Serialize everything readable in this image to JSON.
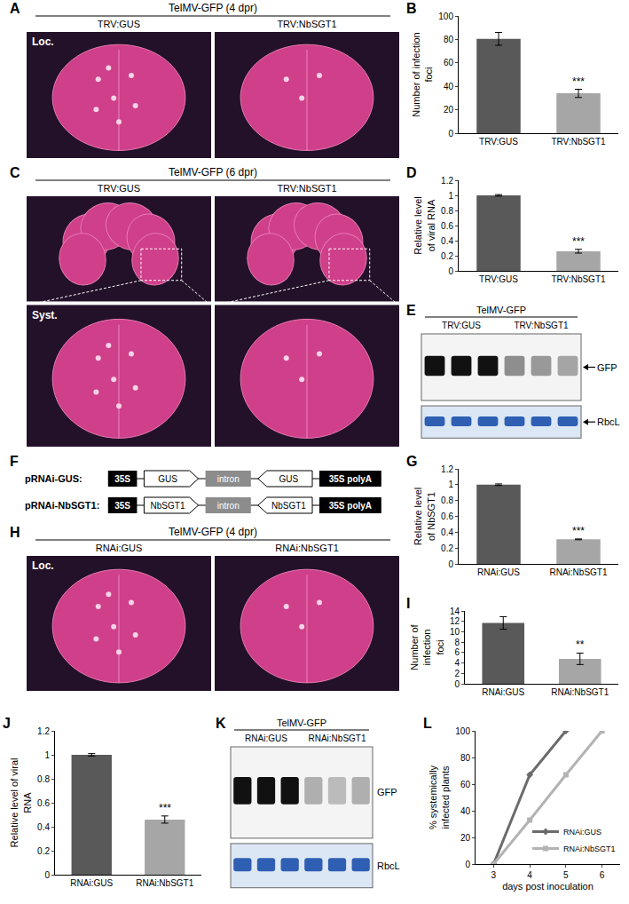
{
  "chart_data": [
    {
      "panel": "B",
      "type": "bar",
      "categories": [
        "TRV:GUS",
        "TRV:NbSGT1"
      ],
      "values": [
        80.5,
        34
      ],
      "errors": [
        5.5,
        3.5
      ],
      "colors": [
        "#595959",
        "#a6a6a6"
      ],
      "ylabel": "Number of infection foci",
      "ylim": [
        0,
        100
      ],
      "yticks": [
        0,
        20,
        40,
        60,
        80,
        100
      ],
      "grid": false,
      "annotations": [
        {
          "category": "TRV:NbSGT1",
          "text": "***"
        }
      ]
    },
    {
      "panel": "D",
      "type": "bar",
      "categories": [
        "TRV:GUS",
        "TRV:NbSGT1"
      ],
      "values": [
        1.0,
        0.26
      ],
      "errors": [
        0.01,
        0.025
      ],
      "colors": [
        "#595959",
        "#a6a6a6"
      ],
      "ylabel": "Relative level of viral RNA",
      "ylim": [
        0,
        1.2
      ],
      "yticks": [
        0,
        0.2,
        0.4,
        0.6,
        0.8,
        1,
        1.2
      ],
      "grid": false,
      "annotations": [
        {
          "category": "TRV:NbSGT1",
          "text": "***"
        }
      ]
    },
    {
      "panel": "G",
      "type": "bar",
      "categories": [
        "RNAi:GUS",
        "RNAi:NbSGT1"
      ],
      "values": [
        1.0,
        0.31
      ],
      "errors": [
        0.01,
        0.005
      ],
      "colors": [
        "#595959",
        "#a6a6a6"
      ],
      "ylabel": "Relative level of NbSGT1",
      "ylim": [
        0,
        1.2
      ],
      "yticks": [
        0,
        0.2,
        0.4,
        0.6,
        0.8,
        1,
        1.2
      ],
      "grid": false,
      "annotations": [
        {
          "category": "RNAi:NbSGT1",
          "text": "***"
        }
      ]
    },
    {
      "panel": "I",
      "type": "bar",
      "categories": [
        "RNAi:GUS",
        "RNAi:NbSGT1"
      ],
      "values": [
        11.7,
        4.8
      ],
      "errors": [
        1.2,
        1.1
      ],
      "colors": [
        "#595959",
        "#a6a6a6"
      ],
      "ylabel": "Number of infection foci",
      "ylim": [
        0,
        14
      ],
      "yticks": [
        0,
        2,
        4,
        6,
        8,
        10,
        12,
        14
      ],
      "grid": false,
      "annotations": [
        {
          "category": "RNAi:NbSGT1",
          "text": "**"
        }
      ]
    },
    {
      "panel": "J",
      "type": "bar",
      "categories": [
        "RNAi:GUS",
        "RNAi:NbSGT1"
      ],
      "values": [
        1.0,
        0.46
      ],
      "errors": [
        0.01,
        0.03
      ],
      "colors": [
        "#595959",
        "#a6a6a6"
      ],
      "ylabel": "Relative level of viral RNA",
      "ylim": [
        0,
        1.2
      ],
      "yticks": [
        0,
        0.2,
        0.4,
        0.6,
        0.8,
        1,
        1.2
      ],
      "grid": false,
      "annotations": [
        {
          "category": "RNAi:NbSGT1",
          "text": "***"
        }
      ]
    },
    {
      "panel": "L",
      "type": "line",
      "x": [
        3,
        4,
        5,
        6
      ],
      "xlim": [
        2.5,
        6.5
      ],
      "xticks": [
        3,
        4,
        5,
        6
      ],
      "xlabel": "days post inoculation",
      "ylabel": "% systemically infected plants",
      "ylim": [
        0,
        100
      ],
      "yticks": [
        0,
        20,
        40,
        60,
        80,
        100
      ],
      "grid": false,
      "legend": "lower right",
      "series": [
        {
          "name": "RNAi:GUS",
          "color": "#6b6b6b",
          "marker": "diamond",
          "values": [
            0,
            67,
            100,
            null
          ]
        },
        {
          "name": "RNAi:NbSGT1",
          "color": "#b3b3b3",
          "marker": "square",
          "values": [
            0,
            33,
            67,
            100
          ]
        }
      ]
    }
  ],
  "photo_panels": [
    {
      "panel": "A",
      "title": "TelMV-GFP (4 dpr)",
      "columns": [
        "TRV:GUS",
        "TRV:NbSGT1"
      ],
      "label": "Loc."
    },
    {
      "panel": "C",
      "title": "TelMV-GFP (6 dpr)",
      "columns": [
        "TRV:GUS",
        "TRV:NbSGT1"
      ],
      "zoom_label": "Syst."
    },
    {
      "panel": "H",
      "title": "TelMV-GFP (4 dpr)",
      "columns": [
        "RNAi:GUS",
        "RNAi:NbSGT1"
      ],
      "label": "Loc."
    }
  ],
  "blot_panels": [
    {
      "panel": "E",
      "title": "TelMV-GFP",
      "columns": [
        "TRV:GUS",
        "TRV:NbSGT1"
      ],
      "lanes_per_column": 3,
      "label_arrows": true,
      "bands": [
        {
          "label": "GFP",
          "intensity": [
            1,
            1,
            1,
            0.45,
            0.4,
            0.35
          ]
        },
        {
          "label": "RbcL",
          "intensity": [
            1,
            1,
            1,
            1,
            1,
            1
          ]
        }
      ]
    },
    {
      "panel": "K",
      "title": "TelMV-GFP",
      "columns": [
        "RNAi:GUS",
        "RNAi:NbSGT1"
      ],
      "lanes_per_column": 3,
      "label_arrows": false,
      "bands": [
        {
          "label": "GFP",
          "intensity": [
            1,
            1,
            1,
            0.3,
            0.25,
            0.3
          ]
        },
        {
          "label": "RbcL",
          "intensity": [
            1,
            1,
            1,
            1,
            1,
            1
          ]
        }
      ]
    }
  ],
  "construct_panel": {
    "panel": "F",
    "constructs": [
      {
        "name": "pRNAi-GUS:",
        "parts": [
          "35S",
          "GUS",
          "intron",
          "GUS",
          "35S polyA"
        ]
      },
      {
        "name": "pRNAi-NbSGT1:",
        "parts": [
          "35S",
          "NbSGT1",
          "intron",
          "NbSGT1",
          "35S polyA"
        ]
      }
    ]
  }
}
